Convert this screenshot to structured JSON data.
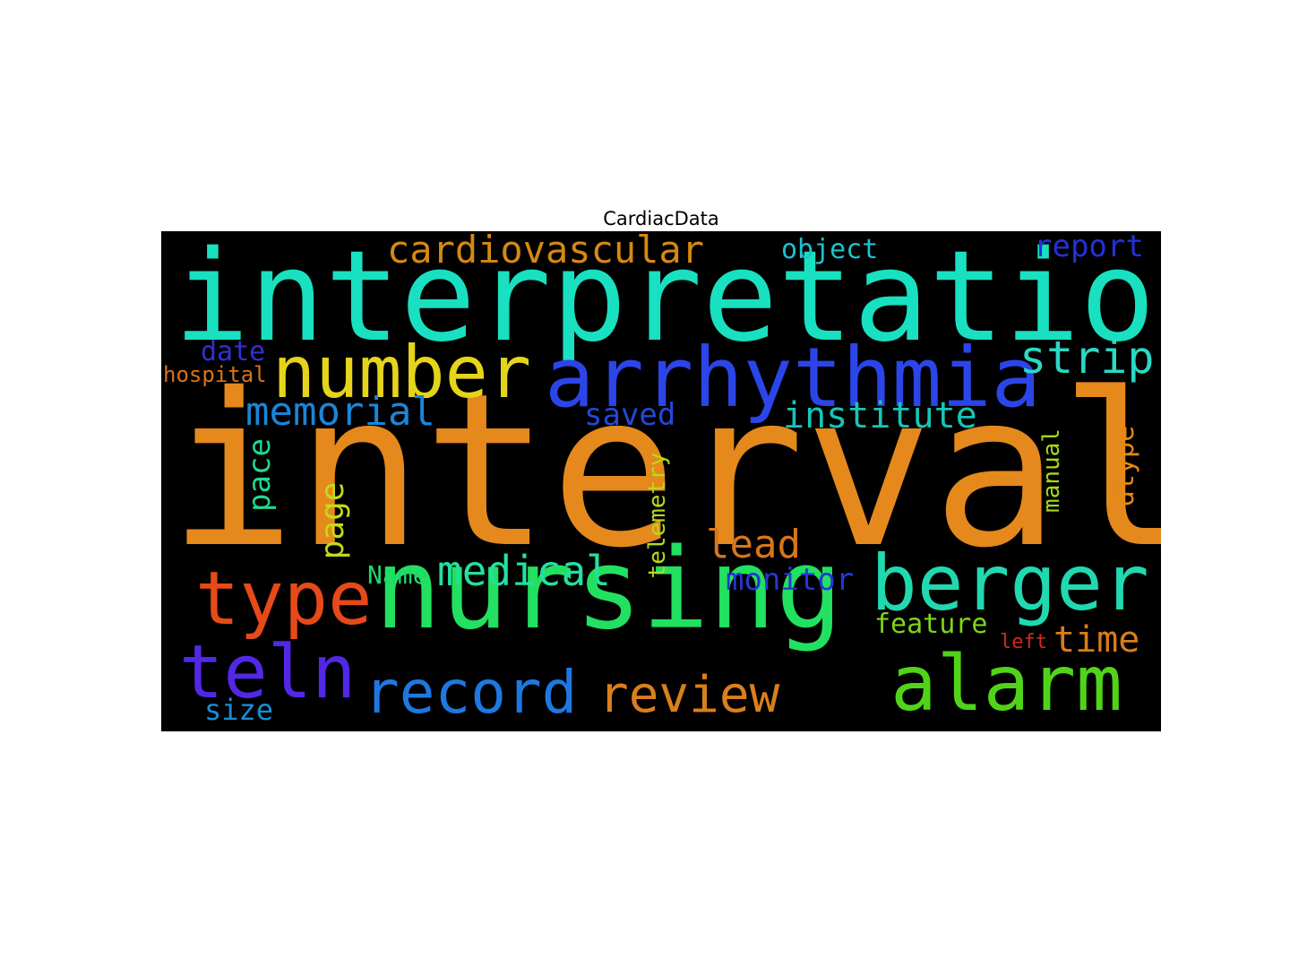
{
  "title": "CardiacData",
  "words": {
    "interval": {
      "text": "interval",
      "color": "#e5891c"
    },
    "interpretation": {
      "text": "interpretation",
      "color": "#19e0c0"
    },
    "nursing": {
      "text": "nursing",
      "color": "#22e060"
    },
    "arrhythmia": {
      "text": "arrhythmia",
      "color": "#2b45e8"
    },
    "number": {
      "text": "number",
      "color": "#e4d41b"
    },
    "berger": {
      "text": "berger",
      "color": "#21d9b0"
    },
    "alarm": {
      "text": "alarm",
      "color": "#4fd419"
    },
    "teln": {
      "text": "teln",
      "color": "#5228e6"
    },
    "type": {
      "text": "type",
      "color": "#e64a19"
    },
    "record": {
      "text": "record",
      "color": "#1e78e0"
    },
    "review": {
      "text": "review",
      "color": "#d9801c"
    },
    "cardiovascular": {
      "text": "cardiovascular",
      "color": "#d48a10"
    },
    "strip": {
      "text": "strip",
      "color": "#2bd8c4"
    },
    "memorial": {
      "text": "memorial",
      "color": "#1a86d8"
    },
    "institute": {
      "text": "institute",
      "color": "#17c5b8"
    },
    "medical": {
      "text": "medical",
      "color": "#22e0a0"
    },
    "lead": {
      "text": "lead",
      "color": "#d9761a"
    },
    "report": {
      "text": "report",
      "color": "#2530d8"
    },
    "object": {
      "text": "object",
      "color": "#1ec2cf"
    },
    "saved": {
      "text": "saved",
      "color": "#2448dc"
    },
    "monitor": {
      "text": "monitor",
      "color": "#2536d4"
    },
    "time": {
      "text": "time",
      "color": "#d97d19"
    },
    "feature": {
      "text": "feature",
      "color": "#7dd619"
    },
    "date": {
      "text": "date",
      "color": "#3230d0"
    },
    "hospital": {
      "text": "hospital",
      "color": "#d9731a"
    },
    "size": {
      "text": "size",
      "color": "#1a8ed6"
    },
    "name": {
      "text": "Name",
      "color": "#1ed96a"
    },
    "left": {
      "text": "left",
      "color": "#d42a1a"
    },
    "pace": {
      "text": "pace",
      "color": "#1ed990"
    },
    "page": {
      "text": "page",
      "color": "#c4d91a"
    },
    "telemetry": {
      "text": "telemetry",
      "color": "#b8d91a"
    },
    "manual": {
      "text": "manual",
      "color": "#a6d91a"
    },
    "dtype": {
      "text": "dtype",
      "color": "#e08a12"
    }
  }
}
